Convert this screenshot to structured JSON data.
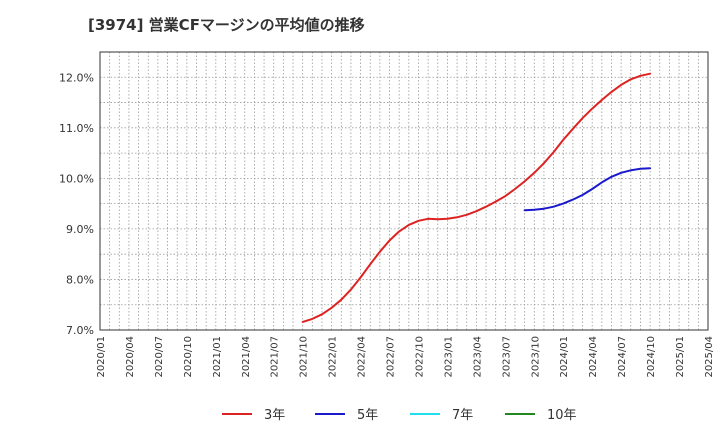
{
  "chart_data": {
    "type": "line",
    "title": "[3974]  営業CFマージンの平均値の推移",
    "xlabel": "",
    "ylabel": "",
    "ylim": [
      7.0,
      12.5
    ],
    "yticks": [
      7.0,
      8.0,
      9.0,
      10.0,
      11.0,
      12.0
    ],
    "ytick_labels": [
      "7.0%",
      "8.0%",
      "9.0%",
      "10.0%",
      "11.0%",
      "12.0%"
    ],
    "x_start": "2020-01",
    "x_end": "2025-04",
    "xtick_labels": [
      "2020/01",
      "2020/04",
      "2020/07",
      "2020/10",
      "2021/01",
      "2021/04",
      "2021/07",
      "2021/10",
      "2022/01",
      "2022/04",
      "2022/07",
      "2022/10",
      "2023/01",
      "2023/04",
      "2023/07",
      "2023/10",
      "2024/01",
      "2024/04",
      "2024/07",
      "2024/10",
      "2025/01",
      "2025/04"
    ],
    "grid": true,
    "legend_position": "bottom",
    "series": [
      {
        "name": "3年",
        "color": "#dd2222",
        "x": [
          "2021/10",
          "2021/11",
          "2021/12",
          "2022/01",
          "2022/02",
          "2022/03",
          "2022/04",
          "2022/05",
          "2022/06",
          "2022/07",
          "2022/08",
          "2022/09",
          "2022/10",
          "2022/11",
          "2022/12",
          "2023/01",
          "2023/02",
          "2023/03",
          "2023/04",
          "2023/05",
          "2023/06",
          "2023/07",
          "2023/08",
          "2023/09",
          "2023/10",
          "2023/11",
          "2023/12",
          "2024/01",
          "2024/02",
          "2024/03",
          "2024/04",
          "2024/05",
          "2024/06",
          "2024/07",
          "2024/08",
          "2024/09",
          "2024/10"
        ],
        "values": [
          7.16,
          7.22,
          7.31,
          7.44,
          7.6,
          7.8,
          8.04,
          8.3,
          8.55,
          8.77,
          8.95,
          9.08,
          9.16,
          9.2,
          9.19,
          9.2,
          9.23,
          9.28,
          9.35,
          9.44,
          9.54,
          9.65,
          9.79,
          9.94,
          10.11,
          10.3,
          10.52,
          10.76,
          10.98,
          11.19,
          11.38,
          11.55,
          11.71,
          11.85,
          11.96,
          12.03,
          12.07
        ]
      },
      {
        "name": "5年",
        "color": "#1a1acc",
        "x": [
          "2023/09",
          "2023/10",
          "2023/11",
          "2023/12",
          "2024/01",
          "2024/02",
          "2024/03",
          "2024/04",
          "2024/05",
          "2024/06",
          "2024/07",
          "2024/08",
          "2024/09",
          "2024/10"
        ],
        "values": [
          9.37,
          9.38,
          9.4,
          9.44,
          9.5,
          9.58,
          9.67,
          9.79,
          9.92,
          10.03,
          10.11,
          10.16,
          10.19,
          10.2
        ]
      },
      {
        "name": "7年",
        "color": "#22ddee",
        "x": [],
        "values": []
      },
      {
        "name": "10年",
        "color": "#228822",
        "x": [],
        "values": []
      }
    ]
  }
}
